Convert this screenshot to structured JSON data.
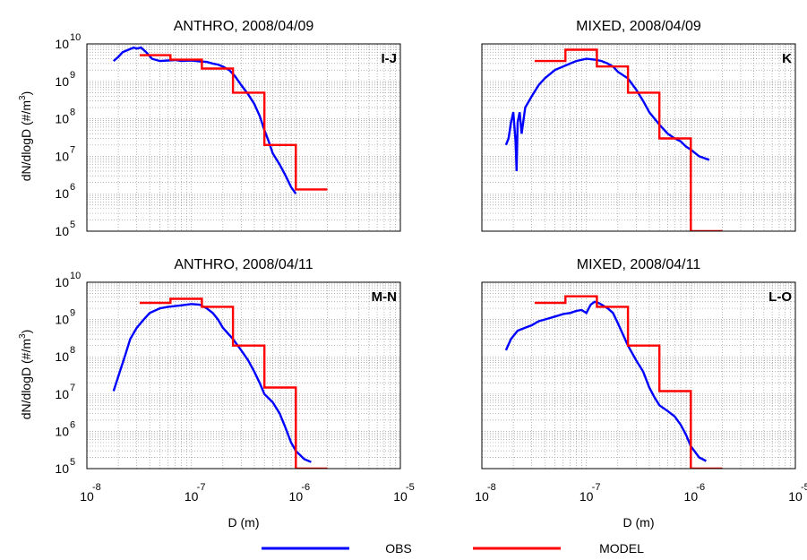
{
  "figure": {
    "xlabel": "D (m)",
    "ylabel_main": "dN/dlogD (#/m",
    "ylabel_sup": "3",
    "ylabel_close": ")",
    "tick_base": "10"
  },
  "legend": {
    "entries": [
      {
        "label": "OBS",
        "color": "#0000ff"
      },
      {
        "label": "MODEL",
        "color": "#ff0000"
      }
    ]
  },
  "colors": {
    "obs": "#0000ff",
    "model": "#ff0000"
  },
  "chart_data": [
    {
      "type": "line",
      "title": "ANTHRO, 2008/04/09",
      "panel_label": "I-J",
      "x_scale": "log",
      "y_scale": "log",
      "xlim": [
        1e-08,
        1e-05
      ],
      "ylim": [
        100000.0,
        10000000000.0
      ],
      "x_tick_exponents": [
        "-8",
        "-7",
        "-6",
        "-5"
      ],
      "y_tick_exponents": [
        "5",
        "6",
        "7",
        "8",
        "9",
        "10"
      ],
      "grid": true,
      "series": [
        {
          "name": "OBS",
          "x": [
            1.8e-08,
            2e-08,
            2.2e-08,
            2.5e-08,
            2.8e-08,
            3e-08,
            3.3e-08,
            3.7e-08,
            4.2e-08,
            5e-08,
            6e-08,
            7e-08,
            8e-08,
            1e-07,
            1.2e-07,
            1.4e-07,
            1.6e-07,
            1.8e-07,
            2e-07,
            2.3e-07,
            2.6e-07,
            3e-07,
            3.5e-07,
            4e-07,
            4.5e-07,
            5e-07,
            5.5e-07,
            6e-07,
            7e-07,
            8e-07,
            9e-07,
            1e-06
          ],
          "y": [
            3500000000.0,
            4500000000.0,
            6000000000.0,
            7000000000.0,
            8000000000.0,
            7500000000.0,
            8000000000.0,
            6000000000.0,
            4000000000.0,
            3500000000.0,
            3600000000.0,
            3700000000.0,
            3500000000.0,
            3600000000.0,
            3400000000.0,
            3300000000.0,
            3000000000.0,
            2800000000.0,
            2500000000.0,
            2000000000.0,
            1400000000.0,
            800000000.0,
            450000000.0,
            250000000.0,
            120000000.0,
            50000000.0,
            25000000.0,
            12000000.0,
            6000000.0,
            3000000.0,
            1500000.0,
            1000000.0
          ]
        },
        {
          "name": "MODEL",
          "x": [
            3.2e-08,
            6.3e-08,
            6.3e-08,
            1.26e-07,
            1.26e-07,
            2.5e-07,
            2.5e-07,
            5e-07,
            5e-07,
            1e-06,
            1e-06,
            2e-06
          ],
          "y": [
            5000000000.0,
            5000000000.0,
            3800000000.0,
            3800000000.0,
            2200000000.0,
            2200000000.0,
            500000000.0,
            500000000.0,
            20000000.0,
            20000000.0,
            1300000.0,
            1300000.0
          ]
        }
      ]
    },
    {
      "type": "line",
      "title": "MIXED, 2008/04/09",
      "panel_label": "K",
      "x_scale": "log",
      "y_scale": "log",
      "xlim": [
        1e-08,
        1e-05
      ],
      "ylim": [
        100000.0,
        10000000000.0
      ],
      "x_tick_exponents": [
        "-8",
        "-7",
        "-6",
        "-5"
      ],
      "y_tick_exponents": [
        "5",
        "6",
        "7",
        "8",
        "9",
        "10"
      ],
      "grid": true,
      "series": [
        {
          "name": "OBS",
          "x": [
            1.7e-08,
            1.8e-08,
            1.9e-08,
            2e-08,
            2.1e-08,
            2.15e-08,
            2.2e-08,
            2.3e-08,
            2.4e-08,
            2.6e-08,
            3e-08,
            3.5e-08,
            4e-08,
            5e-08,
            6e-08,
            7e-08,
            8e-08,
            1e-07,
            1.2e-07,
            1.4e-07,
            1.6e-07,
            1.8e-07,
            2e-07,
            2.5e-07,
            3e-07,
            3.5e-07,
            4e-07,
            5e-07,
            6e-07,
            7e-07,
            8e-07,
            9e-07,
            1e-06,
            1.2e-06,
            1.5e-06
          ],
          "y": [
            20000000.0,
            30000000.0,
            80000000.0,
            150000000.0,
            25000000.0,
            4000000.0,
            80000000.0,
            150000000.0,
            40000000.0,
            200000000.0,
            400000000.0,
            800000000.0,
            1200000000.0,
            2000000000.0,
            2500000000.0,
            3000000000.0,
            3500000000.0,
            4000000000.0,
            3800000000.0,
            3500000000.0,
            3000000000.0,
            2500000000.0,
            1800000000.0,
            1200000000.0,
            600000000.0,
            300000000.0,
            150000000.0,
            70000000.0,
            40000000.0,
            30000000.0,
            25000000.0,
            18000000.0,
            15000000.0,
            10000000.0,
            8000000.0
          ]
        },
        {
          "name": "MODEL",
          "x": [
            3.2e-08,
            6.3e-08,
            6.3e-08,
            1.26e-07,
            1.26e-07,
            2.5e-07,
            2.5e-07,
            5e-07,
            5e-07,
            1e-06,
            1e-06,
            2e-06
          ],
          "y": [
            3500000000.0,
            3500000000.0,
            7000000000.0,
            7000000000.0,
            2500000000.0,
            2500000000.0,
            500000000.0,
            500000000.0,
            30000000.0,
            30000000.0,
            100000.0,
            100000.0
          ]
        }
      ]
    },
    {
      "type": "line",
      "title": "ANTHRO, 2008/04/11",
      "panel_label": "M-N",
      "x_scale": "log",
      "y_scale": "log",
      "xlim": [
        1e-08,
        1e-05
      ],
      "ylim": [
        100000.0,
        10000000000.0
      ],
      "x_tick_exponents": [
        "-8",
        "-7",
        "-6",
        "-5"
      ],
      "y_tick_exponents": [
        "5",
        "6",
        "7",
        "8",
        "9",
        "10"
      ],
      "grid": true,
      "series": [
        {
          "name": "OBS",
          "x": [
            1.8e-08,
            2e-08,
            2.3e-08,
            2.6e-08,
            3e-08,
            3.5e-08,
            4e-08,
            5e-08,
            6e-08,
            7e-08,
            8e-08,
            1e-07,
            1.2e-07,
            1.4e-07,
            1.6e-07,
            1.8e-07,
            2e-07,
            2.5e-07,
            3e-07,
            3.5e-07,
            4e-07,
            4.5e-07,
            5e-07,
            6e-07,
            7e-07,
            8e-07,
            9e-07,
            1e-06,
            1.2e-06,
            1.4e-06
          ],
          "y": [
            12000000.0,
            30000000.0,
            100000000.0,
            300000000.0,
            600000000.0,
            1000000000.0,
            1500000000.0,
            2000000000.0,
            2200000000.0,
            2300000000.0,
            2400000000.0,
            2600000000.0,
            2500000000.0,
            2000000000.0,
            1500000000.0,
            1000000000.0,
            600000000.0,
            300000000.0,
            150000000.0,
            80000000.0,
            40000000.0,
            20000000.0,
            10000000.0,
            6000000.0,
            3000000.0,
            1200000.0,
            500000.0,
            300000.0,
            180000.0,
            150000.0
          ]
        },
        {
          "name": "MODEL",
          "x": [
            3.2e-08,
            6.3e-08,
            6.3e-08,
            1.26e-07,
            1.26e-07,
            2.5e-07,
            2.5e-07,
            5e-07,
            5e-07,
            1e-06,
            1e-06,
            2e-06
          ],
          "y": [
            2800000000.0,
            2800000000.0,
            3600000000.0,
            3600000000.0,
            2200000000.0,
            2200000000.0,
            200000000.0,
            200000000.0,
            15000000.0,
            15000000.0,
            100000.0,
            100000.0
          ]
        }
      ]
    },
    {
      "type": "line",
      "title": "MIXED, 2008/04/11",
      "panel_label": "L-O",
      "x_scale": "log",
      "y_scale": "log",
      "xlim": [
        1e-08,
        1e-05
      ],
      "ylim": [
        100000.0,
        10000000000.0
      ],
      "x_tick_exponents": [
        "-8",
        "-7",
        "-6",
        "-5"
      ],
      "y_tick_exponents": [
        "5",
        "6",
        "7",
        "8",
        "9",
        "10"
      ],
      "grid": true,
      "series": [
        {
          "name": "OBS",
          "x": [
            1.7e-08,
            1.9e-08,
            2.2e-08,
            2.6e-08,
            3e-08,
            3.5e-08,
            4e-08,
            5e-08,
            6e-08,
            7e-08,
            8e-08,
            9e-08,
            1e-07,
            1.1e-07,
            1.2e-07,
            1.3e-07,
            1.4e-07,
            1.6e-07,
            1.8e-07,
            2e-07,
            2.5e-07,
            3e-07,
            3.5e-07,
            4e-07,
            4.5e-07,
            5e-07,
            6e-07,
            7e-07,
            8e-07,
            9e-07,
            1e-06,
            1.2e-06,
            1.4e-06
          ],
          "y": [
            150000000.0,
            300000000.0,
            500000000.0,
            600000000.0,
            700000000.0,
            900000000.0,
            1000000000.0,
            1200000000.0,
            1400000000.0,
            1500000000.0,
            1700000000.0,
            1800000000.0,
            1500000000.0,
            2500000000.0,
            3000000000.0,
            2800000000.0,
            2500000000.0,
            2000000000.0,
            1500000000.0,
            800000000.0,
            200000000.0,
            80000000.0,
            40000000.0,
            15000000.0,
            8000000.0,
            5000000.0,
            3500000.0,
            2500000.0,
            1500000.0,
            800000.0,
            400000.0,
            200000.0,
            160000.0
          ]
        },
        {
          "name": "MODEL",
          "x": [
            3.2e-08,
            6.3e-08,
            6.3e-08,
            1.26e-07,
            1.26e-07,
            2.5e-07,
            2.5e-07,
            5e-07,
            5e-07,
            1e-06,
            1e-06,
            2e-06
          ],
          "y": [
            2800000000.0,
            2800000000.0,
            4200000000.0,
            4200000000.0,
            2200000000.0,
            2200000000.0,
            200000000.0,
            200000000.0,
            12000000.0,
            12000000.0,
            100000.0,
            100000.0
          ]
        }
      ]
    }
  ]
}
